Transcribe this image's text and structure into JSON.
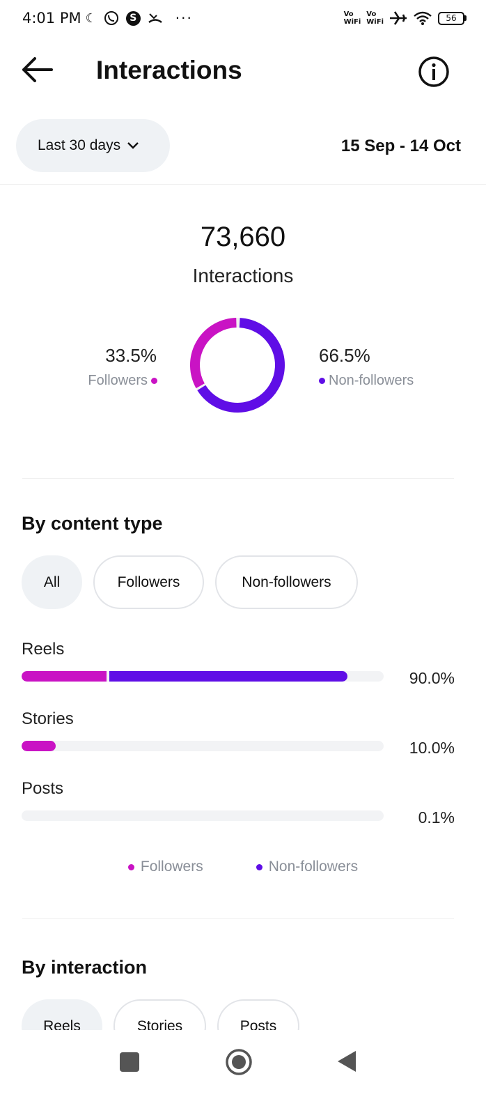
{
  "status_bar": {
    "time": "4:01 PM",
    "left_icons": [
      "moon-icon",
      "whatsapp-icon",
      "s-icon",
      "missed-call-icon"
    ],
    "s_letter": "S",
    "overflow": "···",
    "volte1_top": "Vo",
    "volte1_bottom": "WiFi",
    "volte2_top": "Vo",
    "volte2_bottom": "WiFi",
    "right_icons": [
      "airplane-icon",
      "wifi-icon",
      "battery-icon"
    ],
    "battery": "56"
  },
  "header": {
    "title": "Interactions",
    "back_icon": "arrow-left-icon",
    "info_icon": "info-icon"
  },
  "filter": {
    "range_label": "Last 30 days",
    "date_range": "15 Sep - 14 Oct"
  },
  "summary": {
    "total": "73,660",
    "total_label": "Interactions",
    "followers_pct": "33.5%",
    "followers_label": "Followers",
    "nonfollowers_pct": "66.5%",
    "nonfollowers_label": "Non-followers",
    "followers_share": 0.335,
    "nonfollowers_share": 0.665
  },
  "colors": {
    "followers": "#c913c4",
    "nonfollowers": "#5f0ee6",
    "chip_active_bg": "#eff2f5",
    "muted_text": "#8a8f98"
  },
  "content_type": {
    "title": "By content type",
    "chips": [
      {
        "label": "All",
        "active": true
      },
      {
        "label": "Followers",
        "active": false
      },
      {
        "label": "Non-followers",
        "active": false
      }
    ],
    "rows": [
      {
        "label": "Reels",
        "pct": "90.0%",
        "followers_share": 0.235,
        "nonfollowers_share": 0.665
      },
      {
        "label": "Stories",
        "pct": "10.0%",
        "followers_share": 0.095,
        "nonfollowers_share": 0.0
      },
      {
        "label": "Posts",
        "pct": "0.1%",
        "followers_share": 0.0,
        "nonfollowers_share": 0.0
      }
    ],
    "legend": [
      "Followers",
      "Non-followers"
    ]
  },
  "by_interaction": {
    "title": "By interaction",
    "chips": [
      {
        "label": "Reels",
        "active": true
      },
      {
        "label": "Stories",
        "active": false
      },
      {
        "label": "Posts",
        "active": false
      }
    ]
  },
  "nav_bar": {
    "icons": [
      "recents-icon",
      "home-icon",
      "back-triangle-icon"
    ]
  }
}
